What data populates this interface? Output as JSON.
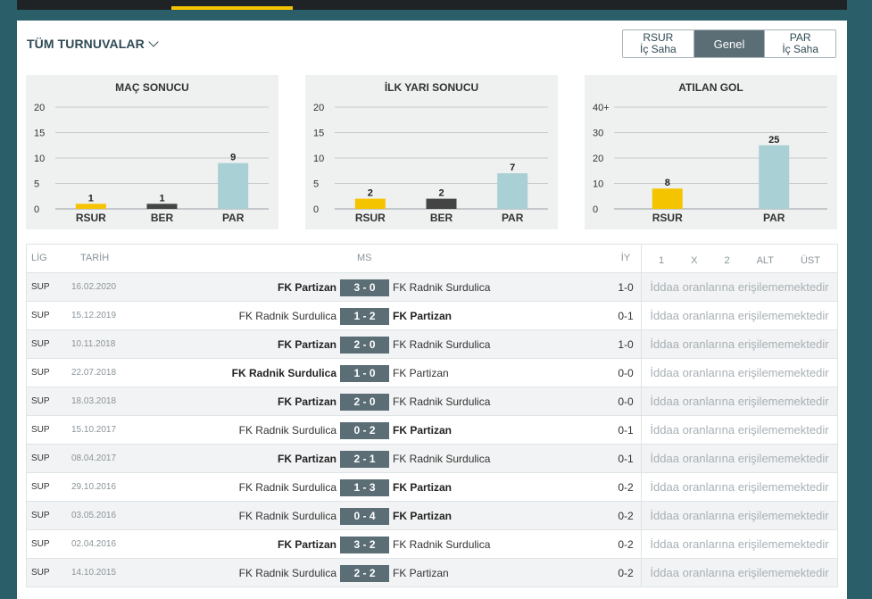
{
  "header": {
    "tournament_label": "TÜM TURNUVALAR",
    "segments": [
      {
        "line1": "RSUR",
        "line2": "İç Saha",
        "active": false
      },
      {
        "line1": "Genel",
        "line2": "",
        "active": true
      },
      {
        "line1": "PAR",
        "line2": "İç Saha",
        "active": false
      }
    ]
  },
  "chart_data": [
    {
      "type": "bar",
      "title": "MAÇ SONUCU",
      "categories": [
        "RSUR",
        "BER",
        "PAR"
      ],
      "values": [
        1,
        1,
        9
      ],
      "colors": [
        "#f5c400",
        "#444444",
        "#a9d0d4"
      ],
      "ylim": [
        0,
        20
      ],
      "yticks": [
        "0",
        "5",
        "10",
        "15",
        "20"
      ],
      "grid": true
    },
    {
      "type": "bar",
      "title": "İLK YARI SONUCU",
      "categories": [
        "RSUR",
        "BER",
        "PAR"
      ],
      "values": [
        2,
        2,
        7
      ],
      "colors": [
        "#f5c400",
        "#444444",
        "#a9d0d4"
      ],
      "ylim": [
        0,
        20
      ],
      "yticks": [
        "0",
        "5",
        "10",
        "15",
        "20"
      ],
      "grid": true
    },
    {
      "type": "bar",
      "title": "ATILAN GOL",
      "categories": [
        "RSUR",
        "PAR"
      ],
      "values": [
        8,
        25
      ],
      "colors": [
        "#f5c400",
        "#a9d0d4"
      ],
      "ylim": [
        0,
        40
      ],
      "yticks": [
        "0",
        "10",
        "20",
        "30",
        "40+"
      ],
      "grid": true
    }
  ],
  "table": {
    "headers": {
      "lig": "LİG",
      "tarih": "TARİH",
      "ms": "MS",
      "iy": "İY",
      "odds": [
        "1",
        "X",
        "2",
        "ALT",
        "ÜST"
      ]
    },
    "odds_unavailable": "İddaa oranlarına erişilememektedir",
    "rows": [
      {
        "lig": "SUP",
        "date": "16.02.2020",
        "home": "FK Partizan",
        "score": "3 - 0",
        "away": "FK Radnik Surdulica",
        "iy": "1-0",
        "winner": "home"
      },
      {
        "lig": "SUP",
        "date": "15.12.2019",
        "home": "FK Radnik Surdulica",
        "score": "1 - 2",
        "away": "FK Partizan",
        "iy": "0-1",
        "winner": "away"
      },
      {
        "lig": "SUP",
        "date": "10.11.2018",
        "home": "FK Partizan",
        "score": "2 - 0",
        "away": "FK Radnik Surdulica",
        "iy": "1-0",
        "winner": "home"
      },
      {
        "lig": "SUP",
        "date": "22.07.2018",
        "home": "FK Radnik Surdulica",
        "score": "1 - 0",
        "away": "FK Partizan",
        "iy": "0-0",
        "winner": "home"
      },
      {
        "lig": "SUP",
        "date": "18.03.2018",
        "home": "FK Partizan",
        "score": "2 - 0",
        "away": "FK Radnik Surdulica",
        "iy": "0-0",
        "winner": "home"
      },
      {
        "lig": "SUP",
        "date": "15.10.2017",
        "home": "FK Radnik Surdulica",
        "score": "0 - 2",
        "away": "FK Partizan",
        "iy": "0-1",
        "winner": "away"
      },
      {
        "lig": "SUP",
        "date": "08.04.2017",
        "home": "FK Partizan",
        "score": "2 - 1",
        "away": "FK Radnik Surdulica",
        "iy": "0-1",
        "winner": "home"
      },
      {
        "lig": "SUP",
        "date": "29.10.2016",
        "home": "FK Radnik Surdulica",
        "score": "1 - 3",
        "away": "FK Partizan",
        "iy": "0-2",
        "winner": "away"
      },
      {
        "lig": "SUP",
        "date": "03.05.2016",
        "home": "FK Radnik Surdulica",
        "score": "0 - 4",
        "away": "FK Partizan",
        "iy": "0-2",
        "winner": "away"
      },
      {
        "lig": "SUP",
        "date": "02.04.2016",
        "home": "FK Partizan",
        "score": "3 - 2",
        "away": "FK Radnik Surdulica",
        "iy": "0-2",
        "winner": "home"
      },
      {
        "lig": "SUP",
        "date": "14.10.2015",
        "home": "FK Radnik Surdulica",
        "score": "2 - 2",
        "away": "FK Partizan",
        "iy": "0-2",
        "winner": "none"
      }
    ]
  }
}
